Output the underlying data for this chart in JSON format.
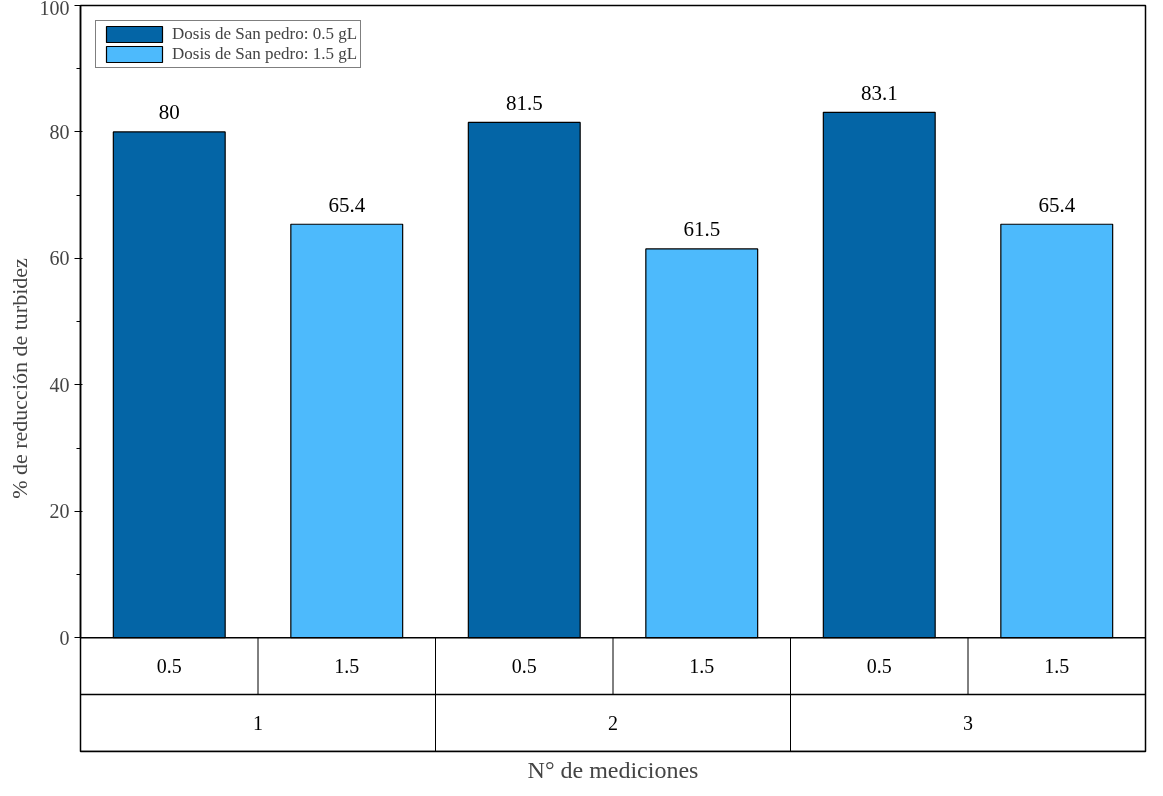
{
  "chart_data": {
    "type": "bar",
    "xlabel": "N° de mediciones",
    "ylabel": "% de reducción de turbidez",
    "categories": [
      "1",
      "2",
      "3"
    ],
    "series": [
      {
        "name": "Dosis de San pedro: 0.5 gL",
        "color": "#0465a6",
        "values": [
          80,
          81.5,
          83.1
        ]
      },
      {
        "name": "Dosis de San pedro: 1.5 gL",
        "color": "#4dbafc",
        "values": [
          65.4,
          61.5,
          65.4
        ]
      }
    ],
    "annotations": [
      "0.5",
      "1.5",
      "0.5",
      "1.5",
      "0.5",
      "1.5"
    ],
    "ylim": [
      0,
      100
    ],
    "yticks": [
      0,
      20,
      40,
      60,
      80,
      100
    ],
    "data_labels": true,
    "legend": "top left",
    "grid": false
  }
}
